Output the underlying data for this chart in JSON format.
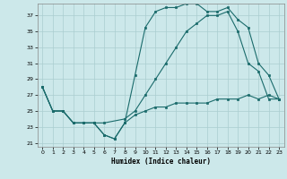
{
  "xlabel": "Humidex (Indice chaleur)",
  "xlim": [
    -0.5,
    23.5
  ],
  "ylim": [
    20.5,
    38.5
  ],
  "xticks": [
    0,
    1,
    2,
    3,
    4,
    5,
    6,
    7,
    8,
    9,
    10,
    11,
    12,
    13,
    14,
    15,
    16,
    17,
    18,
    19,
    20,
    21,
    22,
    23
  ],
  "yticks": [
    21,
    23,
    25,
    27,
    29,
    31,
    33,
    35,
    37
  ],
  "bg_color": "#cce8ea",
  "grid_color": "#aacdd0",
  "line_color": "#1a6b6b",
  "line1_x": [
    0,
    1,
    2,
    3,
    4,
    5,
    6,
    7,
    8,
    9,
    10,
    11,
    12,
    13,
    14,
    15,
    16,
    17,
    18,
    19,
    20,
    21,
    22,
    23
  ],
  "line1_y": [
    28,
    25,
    25,
    23.5,
    23.5,
    23.5,
    22,
    21.5,
    23.5,
    29.5,
    35.5,
    37.5,
    38,
    38,
    38.5,
    38.5,
    37.5,
    37.5,
    38,
    36.5,
    35.5,
    31,
    29.5,
    26.5
  ],
  "line2_x": [
    0,
    1,
    2,
    3,
    5,
    6,
    8,
    9,
    10,
    11,
    12,
    13,
    14,
    15,
    16,
    17,
    18,
    19,
    20,
    21,
    22,
    23
  ],
  "line2_y": [
    28,
    25,
    25,
    23.5,
    23.5,
    23.5,
    24,
    25,
    27,
    29,
    31,
    33,
    35,
    36,
    37,
    37,
    37.5,
    35,
    31,
    30,
    26.5,
    26.5
  ],
  "line3_x": [
    0,
    1,
    2,
    3,
    4,
    5,
    6,
    7,
    8,
    9,
    10,
    11,
    12,
    13,
    14,
    15,
    16,
    17,
    18,
    19,
    20,
    21,
    22,
    23
  ],
  "line3_y": [
    28,
    25,
    25,
    23.5,
    23.5,
    23.5,
    22,
    21.5,
    23.5,
    24.5,
    25,
    25.5,
    25.5,
    26,
    26,
    26,
    26,
    26.5,
    26.5,
    26.5,
    27,
    26.5,
    27,
    26.5
  ]
}
